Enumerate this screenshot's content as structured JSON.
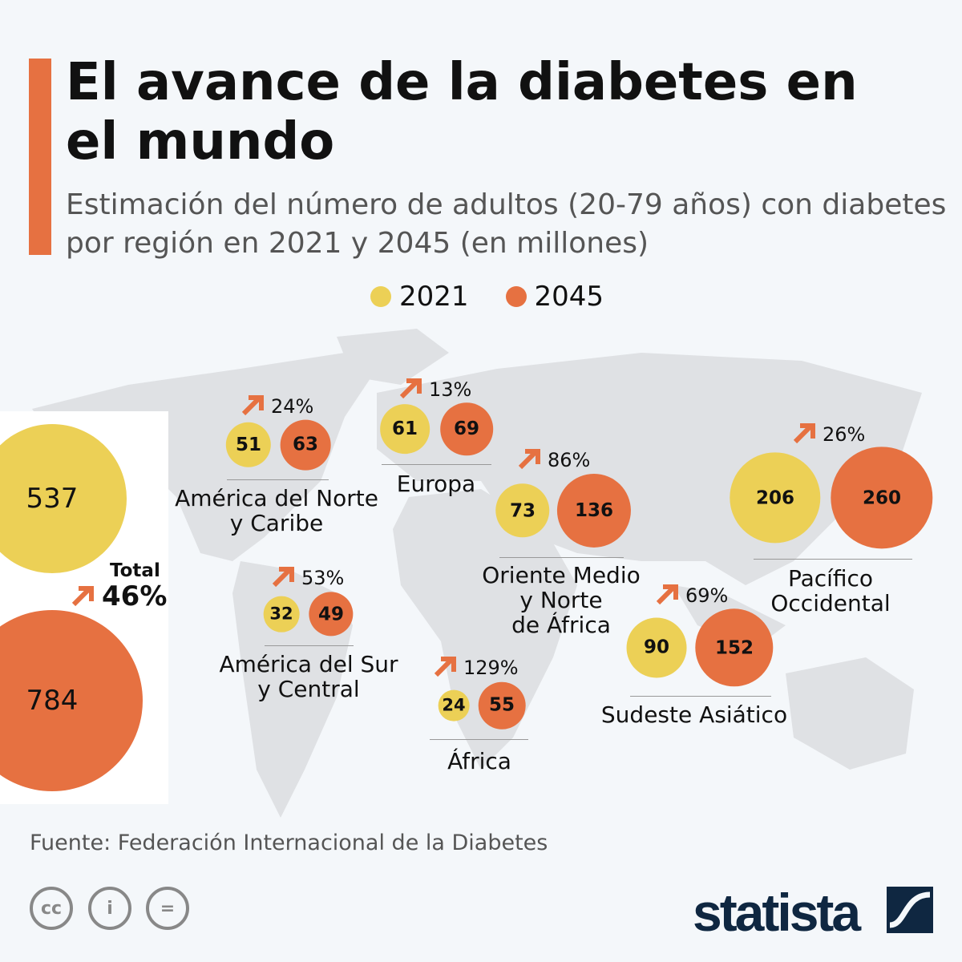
{
  "title": "El avance de la diabetes en el mundo",
  "subtitle": "Estimación del número de adultos (20-79 años) con diabetes por región en 2021 y 2045 (en millones)",
  "legend": {
    "y2021": "2021",
    "y2045": "2045"
  },
  "colors": {
    "y2021": "#ecd056",
    "y2045": "#e67141",
    "accent": "#e67141",
    "map": "#dfe1e4"
  },
  "total": {
    "label": "Total",
    "v2021": "537",
    "v2045": "784",
    "change": "46%"
  },
  "chart_data": {
    "type": "bubble",
    "title": "El avance de la diabetes en el mundo",
    "unit": "millones",
    "series_names": [
      "2021",
      "2045"
    ],
    "regions": [
      {
        "name": "América del Norte\ny Caribe",
        "v2021": 51,
        "v2045": 63,
        "change": "24%"
      },
      {
        "name": "Europa",
        "v2021": 61,
        "v2045": 69,
        "change": "13%"
      },
      {
        "name": "Oriente Medio\ny Norte\nde África",
        "v2021": 73,
        "v2045": 136,
        "change": "86%"
      },
      {
        "name": "América del Sur\ny Central",
        "v2021": 32,
        "v2045": 49,
        "change": "53%"
      },
      {
        "name": "África",
        "v2021": 24,
        "v2045": 55,
        "change": "129%"
      },
      {
        "name": "Sudeste Asiático",
        "v2021": 90,
        "v2045": 152,
        "change": "69%"
      },
      {
        "name": "Pacífico\nOccidental",
        "v2021": 206,
        "v2045": 260,
        "change": "26%"
      }
    ],
    "total": {
      "v2021": 537,
      "v2045": 784,
      "change": "46%"
    }
  },
  "source": "Fuente: Federación Internacional de la Diabetes",
  "license_icons": [
    "cc-icon",
    "attribution-icon",
    "no-derivatives-icon"
  ],
  "brand": "statista"
}
